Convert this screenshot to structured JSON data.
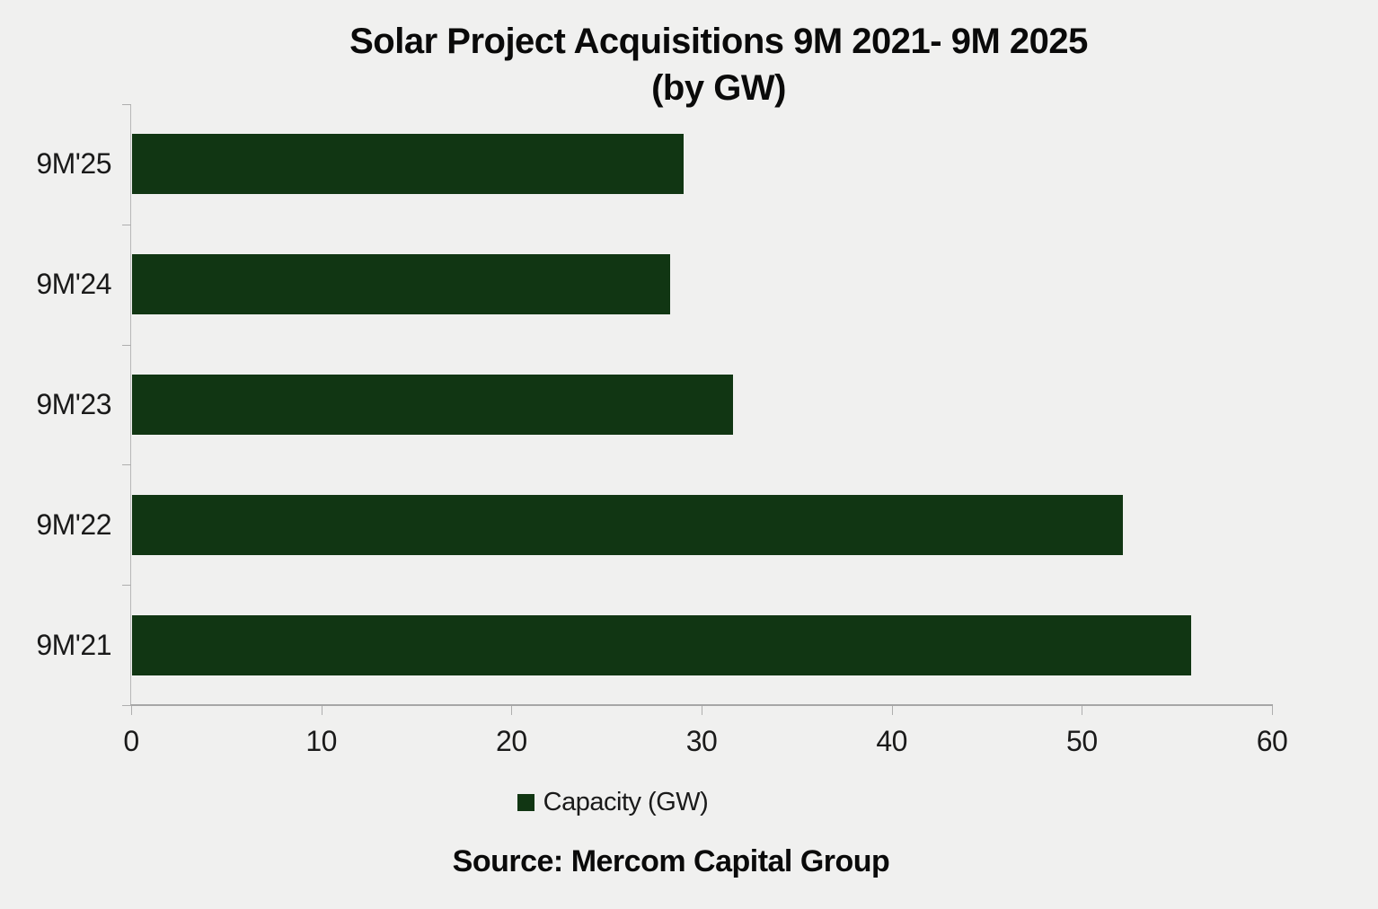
{
  "colors": {
    "background": "#f0f0ef",
    "bar": "#113613",
    "x_axis_line": "#a6a6a6",
    "y_axis_line": "#b8b8b8",
    "tick_mark": "#aeaeae",
    "text": "#1a1a1a"
  },
  "chart_data": {
    "type": "bar",
    "orientation": "horizontal",
    "title": "Solar Project Acquisitions 9M 2021- 9M 2025",
    "subtitle": "(by GW)",
    "categories": [
      "9M'25",
      "9M'24",
      "9M'23",
      "9M'22",
      "9M'21"
    ],
    "values": [
      29.0,
      28.3,
      31.6,
      52.1,
      55.7
    ],
    "xlabel": "",
    "ylabel": "",
    "xlim": [
      0,
      60
    ],
    "xticks": [
      0,
      10,
      20,
      30,
      40,
      50,
      60
    ],
    "grid": false,
    "legend": {
      "label": "Capacity (GW)",
      "position": "bottom",
      "swatch_icon": "square-icon"
    }
  },
  "source_text": "Source: Mercom Capital Group"
}
